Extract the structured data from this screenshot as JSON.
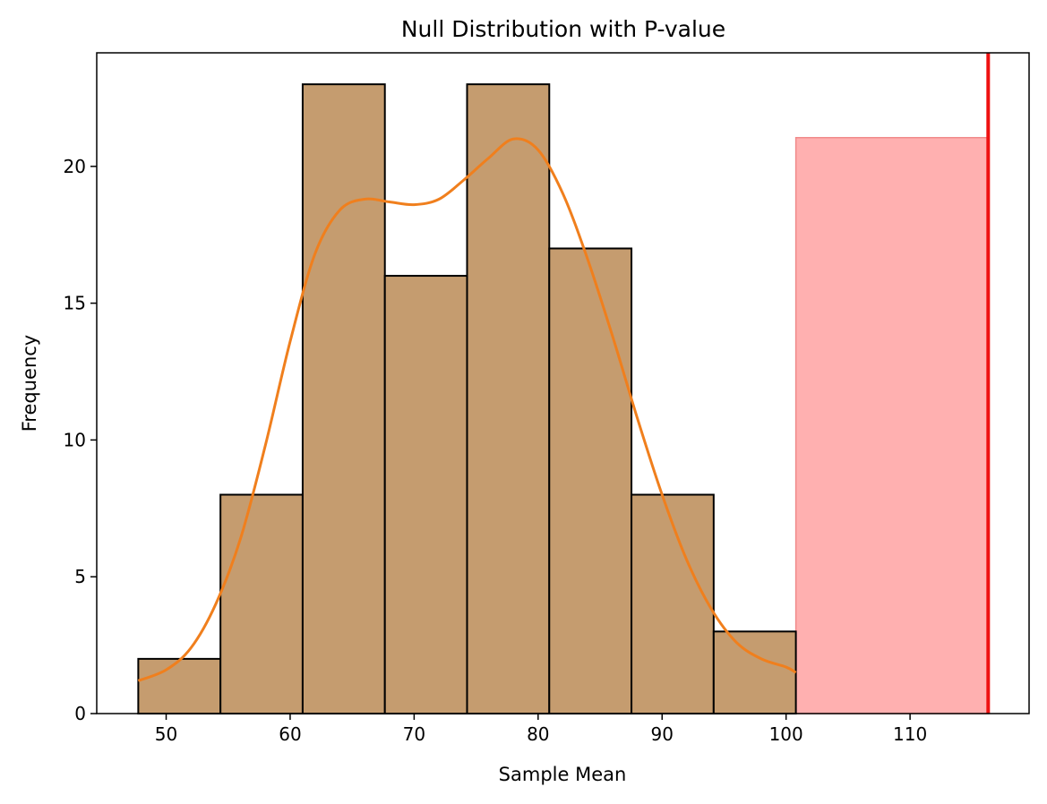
{
  "chart_data": {
    "type": "bar",
    "title": "Null Distribution with P-value",
    "xlabel": "Sample Mean",
    "ylabel": "Frequency",
    "xlim": [
      44.4,
      119.6
    ],
    "ylim": [
      0,
      24.15
    ],
    "xticks": [
      50,
      60,
      70,
      80,
      90,
      100,
      110
    ],
    "yticks": [
      0,
      5,
      10,
      15,
      20
    ],
    "grid": false,
    "histogram": {
      "bin_edges": [
        47.75,
        54.38,
        61.01,
        67.64,
        74.27,
        80.9,
        87.53,
        94.16,
        100.79
      ],
      "counts": [
        2,
        8,
        23,
        16,
        23,
        17,
        8,
        3
      ],
      "color": "#c59c6f",
      "edgecolor": "#000000"
    },
    "kde": {
      "color": "#f07f1d",
      "x": [
        47.75,
        50,
        52,
        54,
        56,
        58,
        60,
        62,
        64,
        66,
        68,
        70,
        72,
        74,
        76,
        78,
        80,
        82,
        84,
        86,
        88,
        90,
        92,
        94,
        96,
        98,
        100,
        100.79
      ],
      "y": [
        1.2,
        1.6,
        2.4,
        4.0,
        6.4,
        9.8,
        13.6,
        16.8,
        18.4,
        18.8,
        18.7,
        18.6,
        18.8,
        19.5,
        20.3,
        21.0,
        20.6,
        19.0,
        16.6,
        13.8,
        10.8,
        8.0,
        5.6,
        3.8,
        2.6,
        2.0,
        1.7,
        1.5
      ]
    },
    "p_value_region": {
      "x_start": 100.79,
      "x_end": 116.3,
      "height": 21.05,
      "color": "#ffb0b0"
    },
    "observed_line": {
      "x": 116.3,
      "color": "#ee1111"
    }
  }
}
